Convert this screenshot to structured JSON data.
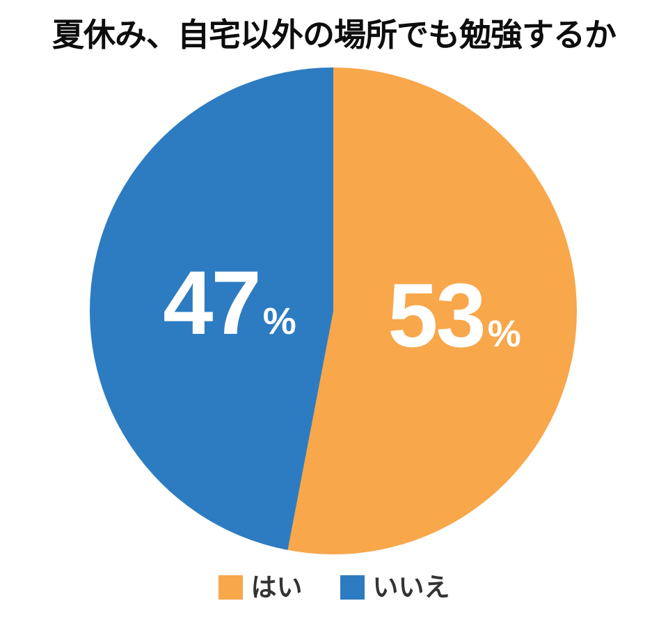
{
  "chart_data": {
    "type": "pie",
    "title": "夏休み、自宅以外の場所でも勉強するか",
    "unit": "%",
    "start_angle_deg": 0,
    "direction": "clockwise",
    "legend_position": "bottom",
    "slices": [
      {
        "label": "はい",
        "value": 53,
        "color": "#F8A74B"
      },
      {
        "label": "いいえ",
        "value": 47,
        "color": "#2D7CC1"
      }
    ]
  },
  "colors": {
    "background": "#FFFFFF",
    "title_text": "#0D0D0D",
    "slice_value_text": "#FFFFFF",
    "legend_text": "#333333"
  }
}
